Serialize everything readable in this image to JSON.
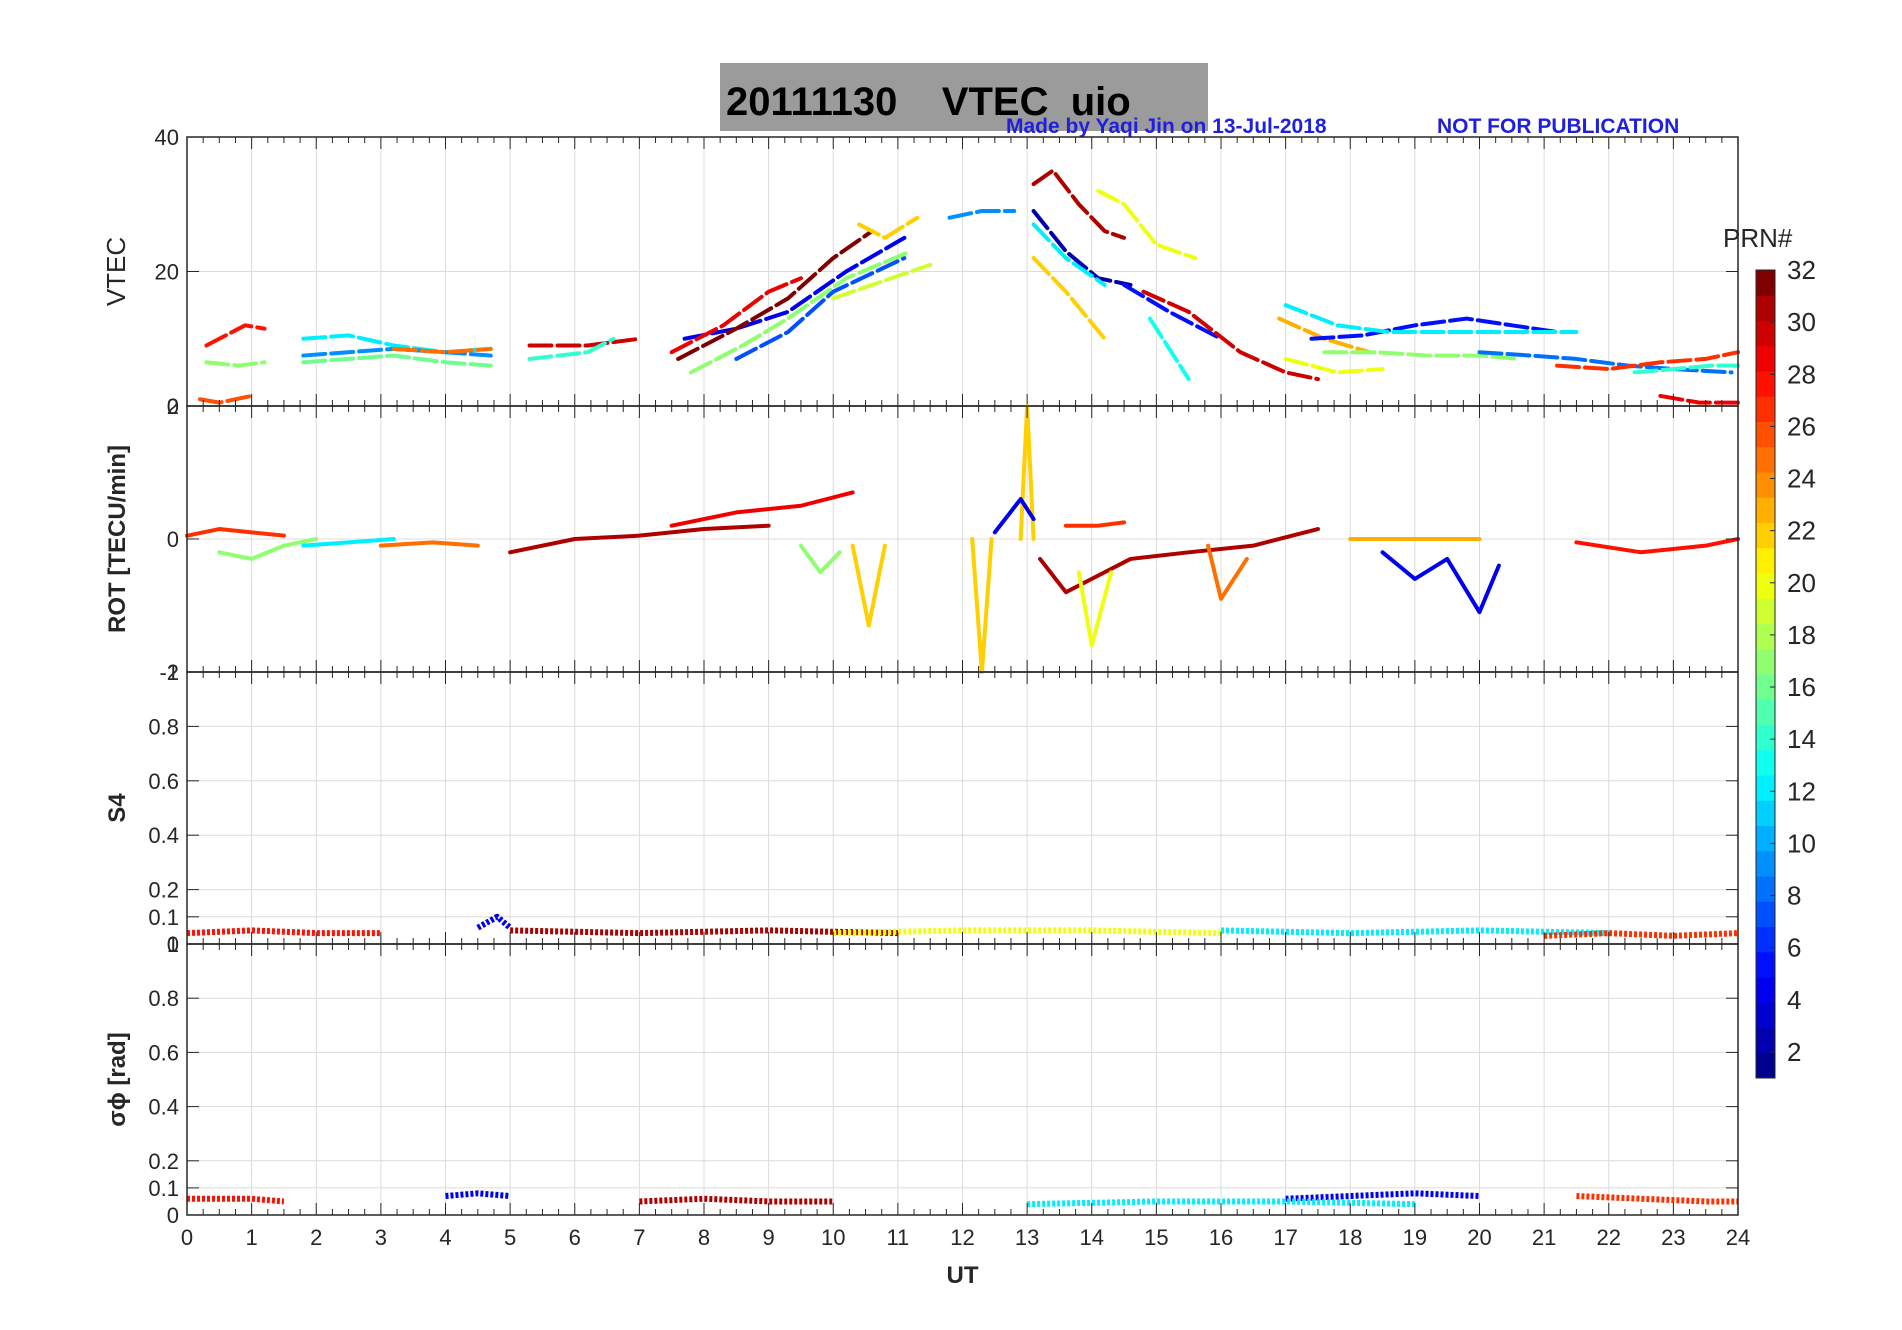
{
  "figure": {
    "title": "20111130    VTEC  uio",
    "note_author": "Made by Yaqi Jin on 13-Jul-2018",
    "note_status": "NOT FOR PUBLICATION"
  },
  "colorbar": {
    "label": "PRN#",
    "ticks": [
      "2",
      "4",
      "6",
      "8",
      "10",
      "12",
      "14",
      "16",
      "18",
      "20",
      "22",
      "24",
      "26",
      "28",
      "30",
      "32"
    ],
    "range": [
      1,
      32
    ],
    "colors": [
      "#00008f",
      "#0000af",
      "#0000cf",
      "#0000ef",
      "#0010ff",
      "#0030ff",
      "#0050ff",
      "#0070ff",
      "#008fff",
      "#00afff",
      "#00cfff",
      "#00efff",
      "#10ffef",
      "#30ffcf",
      "#50ffaf",
      "#70ff8f",
      "#8fff70",
      "#afff50",
      "#cfff30",
      "#efff10",
      "#ffef00",
      "#ffcf00",
      "#ffaf00",
      "#ff8f00",
      "#ff7000",
      "#ff5000",
      "#ff3000",
      "#ff1000",
      "#ef0000",
      "#cf0000",
      "#af0000",
      "#800000"
    ]
  },
  "chart_data": [
    {
      "type": "line",
      "panel": "vtec",
      "ylabel": "VTEC",
      "xlim": [
        0,
        24
      ],
      "ylim": [
        0,
        40
      ],
      "yticks": [
        "0",
        "20",
        "40"
      ],
      "ytick_values": [
        0,
        20,
        40
      ],
      "grid": true,
      "series": [
        {
          "name": "PRN 28",
          "prn": 28,
          "x": [
            0.3,
            0.6,
            0.9,
            1.2
          ],
          "y": [
            9,
            10.5,
            12,
            11.5
          ]
        },
        {
          "name": "PRN 26",
          "prn": 26,
          "x": [
            0.2,
            0.5,
            1.0
          ],
          "y": [
            1,
            0.5,
            1.5
          ]
        },
        {
          "name": "PRN 17",
          "prn": 17,
          "x": [
            0.3,
            0.8,
            1.2
          ],
          "y": [
            6.5,
            6,
            6.5
          ]
        },
        {
          "name": "PRN 12",
          "prn": 12,
          "x": [
            1.8,
            2.5,
            3.2,
            4.0,
            4.7
          ],
          "y": [
            10,
            10.5,
            9,
            8,
            8.5
          ]
        },
        {
          "name": "PRN 16",
          "prn": 16,
          "x": [
            1.8,
            2.5,
            3.2,
            4.0,
            4.7
          ],
          "y": [
            6.5,
            7,
            7.5,
            6.5,
            6
          ]
        },
        {
          "name": "PRN 9",
          "prn": 9,
          "x": [
            1.8,
            2.5,
            3.2,
            4.0,
            4.7
          ],
          "y": [
            7.5,
            8,
            8.5,
            8,
            7.5
          ]
        },
        {
          "name": "PRN 25",
          "prn": 25,
          "x": [
            3.2,
            4.0,
            4.7
          ],
          "y": [
            8.5,
            8,
            8.5
          ]
        },
        {
          "name": "PRN 30",
          "prn": 30,
          "x": [
            5.3,
            6.2,
            7.0
          ],
          "y": [
            9,
            9,
            10
          ]
        },
        {
          "name": "PRN 14",
          "prn": 14,
          "x": [
            5.3,
            6.2,
            6.6
          ],
          "y": [
            7,
            8,
            10
          ]
        },
        {
          "name": "PRN 4",
          "prn": 4,
          "x": [
            7.7,
            8.5,
            9.3,
            10.2,
            11.1
          ],
          "y": [
            10,
            11.5,
            14,
            20,
            25
          ]
        },
        {
          "name": "PRN 29",
          "prn": 29,
          "x": [
            7.5,
            8.3,
            9.0,
            9.5
          ],
          "y": [
            8,
            12,
            17,
            19
          ]
        },
        {
          "name": "PRN 32",
          "prn": 32,
          "x": [
            7.6,
            8.5,
            9.3,
            10.0,
            10.6
          ],
          "y": [
            7,
            11.5,
            16,
            22,
            26
          ]
        },
        {
          "name": "PRN 7",
          "prn": 7,
          "x": [
            8.5,
            9.3,
            10.0,
            11.1
          ],
          "y": [
            7,
            11,
            17,
            22
          ]
        },
        {
          "name": "PRN 17",
          "prn": 17,
          "x": [
            7.8,
            8.6,
            9.3,
            10.2,
            11.2
          ],
          "y": [
            5,
            9,
            13,
            19,
            23
          ]
        },
        {
          "name": "PRN 19",
          "prn": 19,
          "x": [
            10.0,
            10.6,
            11.5
          ],
          "y": [
            16,
            18,
            21
          ]
        },
        {
          "name": "PRN 22",
          "prn": 22,
          "x": [
            10.4,
            10.8,
            11.3
          ],
          "y": [
            27,
            25,
            28
          ]
        },
        {
          "name": "PRN 9",
          "prn": 9,
          "x": [
            11.8,
            12.3,
            12.8
          ],
          "y": [
            28,
            29,
            29
          ]
        },
        {
          "name": "PRN 31",
          "prn": 31,
          "x": [
            13.1,
            13.4,
            13.8,
            14.2,
            14.5
          ],
          "y": [
            33,
            35,
            30,
            26,
            25
          ]
        },
        {
          "name": "PRN 2",
          "prn": 2,
          "x": [
            13.1,
            13.6,
            14.1,
            14.6
          ],
          "y": [
            29,
            23,
            19,
            18
          ]
        },
        {
          "name": "PRN 12",
          "prn": 12,
          "x": [
            13.1,
            13.6,
            14.2
          ],
          "y": [
            27,
            22,
            18
          ]
        },
        {
          "name": "PRN 22",
          "prn": 22,
          "x": [
            13.1,
            13.6,
            14.2
          ],
          "y": [
            22,
            17,
            10
          ]
        },
        {
          "name": "PRN 20",
          "prn": 20,
          "x": [
            14.1,
            14.5,
            15.0,
            15.6
          ],
          "y": [
            32,
            30,
            24,
            22
          ]
        },
        {
          "name": "PRN 5",
          "prn": 5,
          "x": [
            14.5,
            15.2,
            16.0
          ],
          "y": [
            18,
            14,
            10
          ]
        },
        {
          "name": "PRN 30",
          "prn": 30,
          "x": [
            14.8,
            15.5,
            16.3,
            17.0,
            17.5
          ],
          "y": [
            17,
            14,
            8,
            5,
            4
          ]
        },
        {
          "name": "PRN 13",
          "prn": 13,
          "x": [
            14.9,
            15.5
          ],
          "y": [
            13,
            4
          ]
        },
        {
          "name": "PRN 20",
          "prn": 20,
          "x": [
            17.0,
            17.8,
            18.5
          ],
          "y": [
            7,
            5,
            5.5
          ]
        },
        {
          "name": "PRN 23",
          "prn": 23,
          "x": [
            16.9,
            17.6,
            18.3
          ],
          "y": [
            13,
            10,
            8
          ]
        },
        {
          "name": "PRN 5",
          "prn": 5,
          "x": [
            17.4,
            18.2,
            19.0,
            19.8,
            20.5,
            21.2
          ],
          "y": [
            10,
            10.5,
            12,
            13,
            12,
            11
          ]
        },
        {
          "name": "PRN 12",
          "prn": 12,
          "x": [
            17.0,
            17.8,
            18.6,
            19.4,
            20.2,
            21.0,
            21.5
          ],
          "y": [
            15,
            12,
            11,
            11,
            11,
            11,
            11
          ]
        },
        {
          "name": "PRN 17",
          "prn": 17,
          "x": [
            17.6,
            18.4,
            19.2,
            20.0,
            20.6
          ],
          "y": [
            8,
            8,
            7.5,
            7.5,
            7
          ]
        },
        {
          "name": "PRN 8",
          "prn": 8,
          "x": [
            20.0,
            20.8,
            21.5,
            22.3,
            23.0,
            23.9
          ],
          "y": [
            8,
            7.5,
            7,
            6,
            5.5,
            5
          ]
        },
        {
          "name": "PRN 27",
          "prn": 27,
          "x": [
            21.2,
            22.0,
            22.8,
            23.5,
            24.0
          ],
          "y": [
            6,
            5.5,
            6.5,
            7,
            8
          ]
        },
        {
          "name": "PRN 29",
          "prn": 29,
          "x": [
            22.8,
            23.4,
            24.0
          ],
          "y": [
            1.5,
            0.5,
            0.5
          ]
        },
        {
          "name": "PRN 14",
          "prn": 14,
          "x": [
            22.4,
            23.0,
            23.6,
            24.0
          ],
          "y": [
            5,
            5.5,
            6,
            6
          ]
        }
      ]
    },
    {
      "type": "line",
      "panel": "rot",
      "ylabel": "ROT [TECU/min]",
      "xlim": [
        0,
        24
      ],
      "ylim": [
        -2,
        2
      ],
      "yticks": [
        "-2",
        "0",
        "2"
      ],
      "ytick_values": [
        -2,
        0,
        2
      ],
      "grid": true,
      "notes": "noisy ROT traces near 0 with excursions",
      "series": [
        {
          "name": "PRN 27",
          "prn": 27,
          "x": [
            0,
            0.5,
            1.0,
            1.5
          ],
          "y": [
            0.05,
            0.15,
            0.1,
            0.05
          ]
        },
        {
          "name": "PRN 17",
          "prn": 17,
          "x": [
            0.5,
            1.0,
            1.5,
            2.0
          ],
          "y": [
            -0.2,
            -0.3,
            -0.1,
            0
          ]
        },
        {
          "name": "PRN 12",
          "prn": 12,
          "x": [
            1.8,
            2.5,
            3.2
          ],
          "y": [
            -0.1,
            -0.05,
            0
          ]
        },
        {
          "name": "PRN 25",
          "prn": 25,
          "x": [
            3.0,
            3.8,
            4.5
          ],
          "y": [
            -0.1,
            -0.05,
            -0.1
          ]
        },
        {
          "name": "PRN 31",
          "prn": 31,
          "x": [
            5.0,
            6.0,
            7.0,
            8.0,
            9.0
          ],
          "y": [
            -0.2,
            0,
            0.05,
            0.15,
            0.2
          ]
        },
        {
          "name": "PRN 29",
          "prn": 29,
          "x": [
            7.5,
            8.5,
            9.5,
            10.3
          ],
          "y": [
            0.2,
            0.4,
            0.5,
            0.7
          ]
        },
        {
          "name": "PRN 17",
          "prn": 17,
          "x": [
            9.5,
            9.8,
            10.1
          ],
          "y": [
            -0.1,
            -0.5,
            -0.2
          ]
        },
        {
          "name": "PRN 22",
          "prn": 22,
          "x": [
            10.3,
            10.55,
            10.8
          ],
          "y": [
            -0.1,
            -1.3,
            -0.1
          ]
        },
        {
          "name": "PRN 22",
          "prn": 22,
          "x": [
            12.15,
            12.3,
            12.45
          ],
          "y": [
            0,
            -2.0,
            0
          ]
        },
        {
          "name": "PRN 22",
          "prn": 22,
          "x": [
            12.9,
            13.0,
            13.1
          ],
          "y": [
            0,
            2.0,
            0
          ]
        },
        {
          "name": "PRN 4",
          "prn": 4,
          "x": [
            12.5,
            12.9,
            13.1
          ],
          "y": [
            0.1,
            0.6,
            0.3
          ]
        },
        {
          "name": "PRN 31",
          "prn": 31,
          "x": [
            13.2,
            13.6,
            14.0,
            14.6,
            15.5,
            16.5,
            17.5
          ],
          "y": [
            -0.3,
            -0.8,
            -0.6,
            -0.3,
            -0.2,
            -0.1,
            0.15
          ]
        },
        {
          "name": "PRN 27",
          "prn": 27,
          "x": [
            13.6,
            14.1,
            14.5
          ],
          "y": [
            0.2,
            0.2,
            0.25
          ]
        },
        {
          "name": "PRN 20",
          "prn": 20,
          "x": [
            13.8,
            14.0,
            14.3
          ],
          "y": [
            -0.5,
            -1.6,
            -0.5
          ]
        },
        {
          "name": "PRN 25",
          "prn": 25,
          "x": [
            15.8,
            16.0,
            16.4
          ],
          "y": [
            -0.1,
            -0.9,
            -0.3
          ]
        },
        {
          "name": "PRN 4",
          "prn": 4,
          "x": [
            18.5,
            19.0,
            19.5,
            20.0,
            20.3
          ],
          "y": [
            -0.2,
            -0.6,
            -0.3,
            -1.1,
            -0.4
          ]
        },
        {
          "name": "PRN 23",
          "prn": 23,
          "x": [
            18.0,
            19.0,
            20.0
          ],
          "y": [
            0,
            0,
            0
          ]
        },
        {
          "name": "PRN 28",
          "prn": 28,
          "x": [
            21.5,
            22.5,
            23.5,
            24.0
          ],
          "y": [
            -0.05,
            -0.2,
            -0.1,
            0
          ]
        }
      ]
    },
    {
      "type": "scatter",
      "panel": "s4",
      "ylabel": "S4",
      "xlim": [
        0,
        24
      ],
      "ylim": [
        0,
        1
      ],
      "yticks": [
        "0",
        "0.1",
        "0.2",
        "0.4",
        "0.6",
        "0.8",
        "1"
      ],
      "ytick_values": [
        0,
        0.1,
        0.2,
        0.4,
        0.6,
        0.8,
        1
      ],
      "grid": true,
      "notes": "S4 values mostly 0.02-0.08, occasional peaks ~0.1",
      "series": [
        {
          "name": "PRN 28",
          "prn": 28,
          "x": [
            0,
            1,
            2,
            3
          ],
          "y": [
            0.04,
            0.05,
            0.04,
            0.04
          ]
        },
        {
          "name": "PRN 4",
          "prn": 4,
          "x": [
            4.5,
            4.8,
            5.0
          ],
          "y": [
            0.06,
            0.1,
            0.06
          ]
        },
        {
          "name": "PRN 31",
          "prn": 31,
          "x": [
            5,
            7,
            9,
            11
          ],
          "y": [
            0.05,
            0.04,
            0.05,
            0.04
          ]
        },
        {
          "name": "PRN 20",
          "prn": 20,
          "x": [
            10,
            12,
            14,
            16
          ],
          "y": [
            0.04,
            0.05,
            0.05,
            0.04
          ]
        },
        {
          "name": "PRN 12",
          "prn": 12,
          "x": [
            16,
            18,
            20,
            22
          ],
          "y": [
            0.05,
            0.04,
            0.05,
            0.04
          ]
        },
        {
          "name": "PRN 27",
          "prn": 27,
          "x": [
            21,
            22,
            23,
            24
          ],
          "y": [
            0.03,
            0.04,
            0.03,
            0.04
          ]
        }
      ]
    },
    {
      "type": "scatter",
      "panel": "sigma_phi",
      "ylabel": "σϕ [rad]",
      "xlim": [
        0,
        24
      ],
      "ylim": [
        0,
        1
      ],
      "yticks": [
        "0",
        "0.1",
        "0.2",
        "0.4",
        "0.6",
        "0.8",
        "1"
      ],
      "ytick_values": [
        0,
        0.1,
        0.2,
        0.4,
        0.6,
        0.8,
        1
      ],
      "xticks": [
        "0",
        "1",
        "2",
        "3",
        "4",
        "5",
        "6",
        "7",
        "8",
        "9",
        "10",
        "11",
        "12",
        "13",
        "14",
        "15",
        "16",
        "17",
        "18",
        "19",
        "20",
        "21",
        "22",
        "23",
        "24"
      ],
      "xlabel": "UT",
      "grid": true,
      "notes": "sigma-phi mostly 0.02-0.08",
      "series": [
        {
          "name": "PRN 28",
          "prn": 28,
          "x": [
            0,
            1,
            1.5
          ],
          "y": [
            0.06,
            0.06,
            0.05
          ]
        },
        {
          "name": "PRN 4",
          "prn": 4,
          "x": [
            4,
            4.5,
            5
          ],
          "y": [
            0.07,
            0.08,
            0.07
          ]
        },
        {
          "name": "PRN 31",
          "prn": 31,
          "x": [
            7,
            8,
            9,
            10
          ],
          "y": [
            0.05,
            0.06,
            0.05,
            0.05
          ]
        },
        {
          "name": "PRN 4",
          "prn": 4,
          "x": [
            17,
            18,
            19,
            20
          ],
          "y": [
            0.06,
            0.07,
            0.08,
            0.07
          ]
        },
        {
          "name": "PRN 27",
          "prn": 27,
          "x": [
            21.5,
            22.5,
            23.5,
            24
          ],
          "y": [
            0.07,
            0.06,
            0.05,
            0.05
          ]
        },
        {
          "name": "PRN 12",
          "prn": 12,
          "x": [
            13,
            15,
            17,
            19
          ],
          "y": [
            0.04,
            0.05,
            0.05,
            0.04
          ]
        }
      ]
    }
  ]
}
